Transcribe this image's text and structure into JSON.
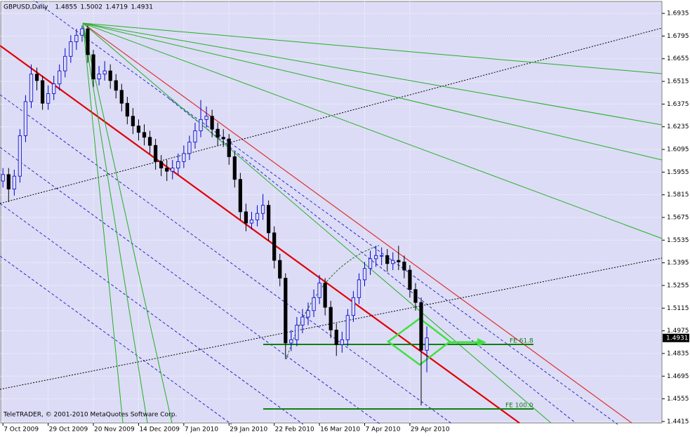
{
  "chart_data": {
    "type": "candlestick",
    "symbol": "GBPUSD,Daily",
    "footer": "TeleTRADER, © 2001-2010 MetaQuotes Software Corp.",
    "annotations": [
      "FE 61.8",
      "FE 100.0"
    ],
    "ylim": [
      1.4406,
      1.7009
    ],
    "yticks": [
      1.6935,
      1.6795,
      1.6655,
      1.6515,
      1.6375,
      1.6235,
      1.6095,
      1.5955,
      1.5815,
      1.5675,
      1.5535,
      1.5395,
      1.5255,
      1.5115,
      1.4975,
      1.4835,
      1.4695,
      1.4555,
      1.4415
    ],
    "xlim": [
      -0.4,
      116.6
    ],
    "xticks": [
      {
        "value": 0,
        "label": "7 Oct 2009"
      },
      {
        "value": 8,
        "label": "29 Oct 2009"
      },
      {
        "value": 16,
        "label": "20 Nov 2009"
      },
      {
        "value": 24,
        "label": "14 Dec 2009"
      },
      {
        "value": 32,
        "label": "7 Jan 2010"
      },
      {
        "value": 40,
        "label": "29 Jan 2010"
      },
      {
        "value": 48,
        "label": "22 Feb 2010"
      },
      {
        "value": 56,
        "label": "16 Mar 2010"
      },
      {
        "value": 64,
        "label": "7 Apr 2010"
      },
      {
        "value": 72,
        "label": "29 Apr 2010"
      }
    ],
    "grid": true,
    "up_color": "#0000cc",
    "down_color": "#000000",
    "candles": [
      [
        1.59,
        1.598,
        1.586,
        1.594
      ],
      [
        1.594,
        1.598,
        1.577,
        1.585
      ],
      [
        1.585,
        1.597,
        1.581,
        1.593
      ],
      [
        1.593,
        1.622,
        1.589,
        1.618
      ],
      [
        1.618,
        1.643,
        1.614,
        1.639
      ],
      [
        1.639,
        1.662,
        1.635,
        1.656
      ],
      [
        1.656,
        1.66,
        1.646,
        1.652
      ],
      [
        1.652,
        1.655,
        1.634,
        1.638
      ],
      [
        1.638,
        1.649,
        1.634,
        1.644
      ],
      [
        1.644,
        1.655,
        1.64,
        1.65
      ],
      [
        1.65,
        1.662,
        1.646,
        1.658
      ],
      [
        1.658,
        1.672,
        1.654,
        1.667
      ],
      [
        1.667,
        1.68,
        1.663,
        1.676
      ],
      [
        1.676,
        1.684,
        1.671,
        1.68
      ],
      [
        1.68,
        1.686,
        1.676,
        1.684
      ],
      [
        1.684,
        1.686,
        1.663,
        1.668
      ],
      [
        1.668,
        1.671,
        1.648,
        1.653
      ],
      [
        1.653,
        1.661,
        1.649,
        1.656
      ],
      [
        1.656,
        1.664,
        1.652,
        1.658
      ],
      [
        1.658,
        1.662,
        1.647,
        1.652
      ],
      [
        1.652,
        1.656,
        1.641,
        1.646
      ],
      [
        1.646,
        1.65,
        1.633,
        1.638
      ],
      [
        1.638,
        1.642,
        1.625,
        1.63
      ],
      [
        1.63,
        1.635,
        1.619,
        1.624
      ],
      [
        1.624,
        1.628,
        1.615,
        1.62
      ],
      [
        1.62,
        1.625,
        1.612,
        1.617
      ],
      [
        1.617,
        1.621,
        1.607,
        1.612
      ],
      [
        1.612,
        1.616,
        1.597,
        1.602
      ],
      [
        1.602,
        1.606,
        1.593,
        1.598
      ],
      [
        1.598,
        1.603,
        1.59,
        1.596
      ],
      [
        1.596,
        1.603,
        1.591,
        1.598
      ],
      [
        1.598,
        1.607,
        1.594,
        1.602
      ],
      [
        1.602,
        1.612,
        1.598,
        1.607
      ],
      [
        1.607,
        1.618,
        1.603,
        1.614
      ],
      [
        1.614,
        1.626,
        1.61,
        1.621
      ],
      [
        1.621,
        1.64,
        1.617,
        1.628
      ],
      [
        1.628,
        1.636,
        1.623,
        1.63
      ],
      [
        1.63,
        1.634,
        1.617,
        1.622
      ],
      [
        1.622,
        1.626,
        1.612,
        1.617
      ],
      [
        1.617,
        1.622,
        1.611,
        1.616
      ],
      [
        1.616,
        1.619,
        1.6,
        1.605
      ],
      [
        1.605,
        1.608,
        1.586,
        1.591
      ],
      [
        1.591,
        1.595,
        1.566,
        1.571
      ],
      [
        1.571,
        1.576,
        1.559,
        1.564
      ],
      [
        1.564,
        1.571,
        1.56,
        1.566
      ],
      [
        1.566,
        1.575,
        1.562,
        1.57
      ],
      [
        1.57,
        1.582,
        1.566,
        1.575
      ],
      [
        1.575,
        1.578,
        1.553,
        1.558
      ],
      [
        1.558,
        1.562,
        1.536,
        1.541
      ],
      [
        1.541,
        1.545,
        1.525,
        1.53
      ],
      [
        1.53,
        1.533,
        1.48,
        1.49
      ],
      [
        1.49,
        1.498,
        1.485,
        1.492
      ],
      [
        1.492,
        1.506,
        1.488,
        1.501
      ],
      [
        1.501,
        1.511,
        1.496,
        1.506
      ],
      [
        1.506,
        1.515,
        1.501,
        1.51
      ],
      [
        1.51,
        1.523,
        1.506,
        1.518
      ],
      [
        1.518,
        1.532,
        1.514,
        1.527
      ],
      [
        1.527,
        1.53,
        1.507,
        1.512
      ],
      [
        1.512,
        1.516,
        1.493,
        1.498
      ],
      [
        1.498,
        1.502,
        1.482,
        1.489
      ],
      [
        1.489,
        1.497,
        1.484,
        1.492
      ],
      [
        1.492,
        1.511,
        1.488,
        1.507
      ],
      [
        1.507,
        1.522,
        1.503,
        1.518
      ],
      [
        1.518,
        1.533,
        1.514,
        1.529
      ],
      [
        1.529,
        1.54,
        1.525,
        1.536
      ],
      [
        1.536,
        1.547,
        1.532,
        1.542
      ],
      [
        1.542,
        1.55,
        1.537,
        1.544
      ],
      [
        1.544,
        1.549,
        1.538,
        1.544
      ],
      [
        1.544,
        1.548,
        1.534,
        1.539
      ],
      [
        1.539,
        1.546,
        1.535,
        1.541
      ],
      [
        1.541,
        1.55,
        1.535,
        1.54
      ],
      [
        1.54,
        1.544,
        1.53,
        1.535
      ],
      [
        1.535,
        1.538,
        1.518,
        1.523
      ],
      [
        1.523,
        1.527,
        1.51,
        1.515
      ],
      [
        1.515,
        1.518,
        1.4515,
        1.4855
      ],
      [
        1.4855,
        1.5002,
        1.4719,
        1.4931
      ]
    ]
  }
}
